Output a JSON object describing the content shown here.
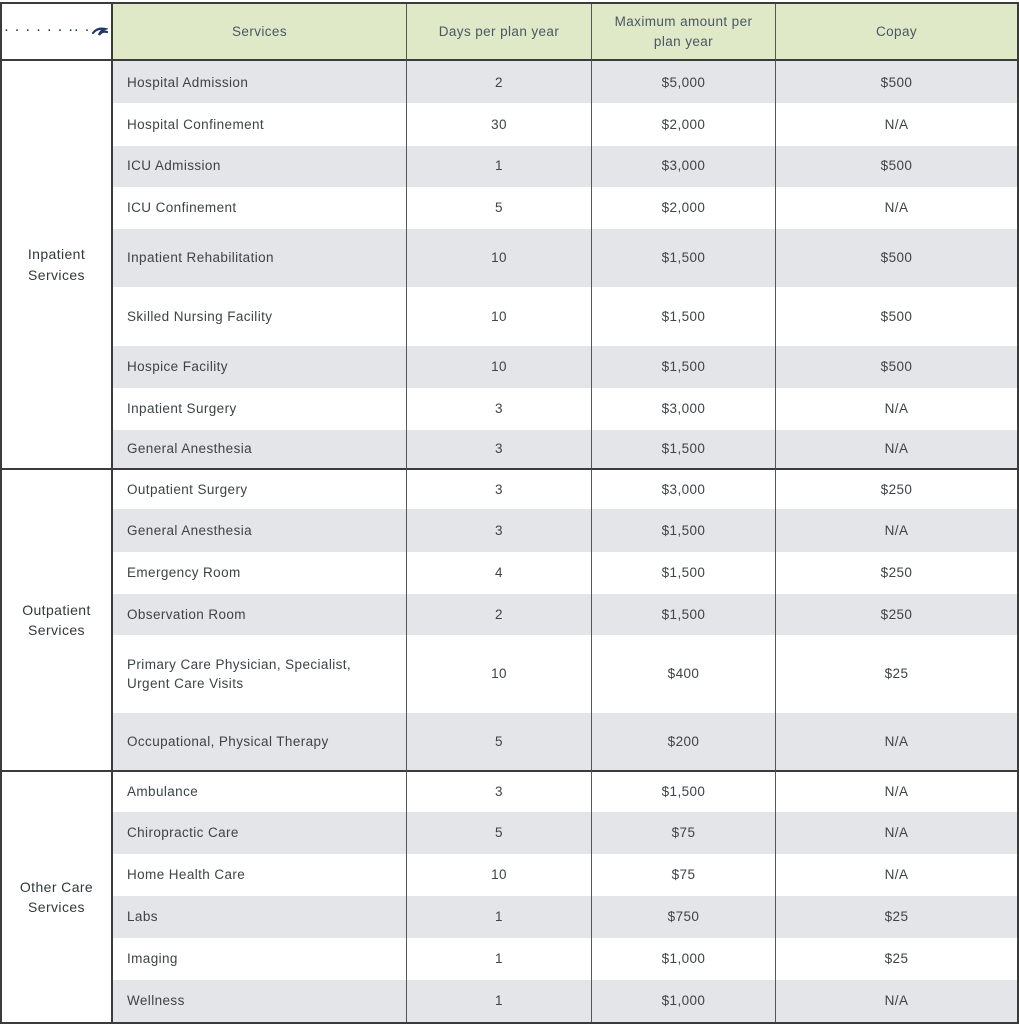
{
  "logo": {
    "icon": "dotted-wordmark",
    "glyph": "· · · · · · ·· ·"
  },
  "table": {
    "headers": [
      "Services",
      "Days per plan year",
      "Maximum amount per plan year",
      "Copay"
    ],
    "sections": [
      {
        "group": "Inpatient Services",
        "rows": [
          {
            "service": "Hospital Admission",
            "days": "2",
            "max": "$5,000",
            "copay": "$500"
          },
          {
            "service": "Hospital Confinement",
            "days": "30",
            "max": "$2,000",
            "copay": "N/A"
          },
          {
            "service": "ICU Admission",
            "days": "1",
            "max": "$3,000",
            "copay": "$500"
          },
          {
            "service": "ICU Confinement",
            "days": "5",
            "max": "$2,000",
            "copay": "N/A"
          },
          {
            "service": "Inpatient Rehabilitation",
            "days": "10",
            "max": "$1,500",
            "copay": "$500"
          },
          {
            "service": "Skilled Nursing Facility",
            "days": "10",
            "max": "$1,500",
            "copay": "$500"
          },
          {
            "service": "Hospice Facility",
            "days": "10",
            "max": "$1,500",
            "copay": "$500"
          },
          {
            "service": "Inpatient Surgery",
            "days": "3",
            "max": "$3,000",
            "copay": "N/A"
          },
          {
            "service": "General Anesthesia",
            "days": "3",
            "max": "$1,500",
            "copay": "N/A"
          }
        ]
      },
      {
        "group": "Outpatient Services",
        "rows": [
          {
            "service": "Outpatient Surgery",
            "days": "3",
            "max": "$3,000",
            "copay": "$250"
          },
          {
            "service": "General Anesthesia",
            "days": "3",
            "max": "$1,500",
            "copay": "N/A"
          },
          {
            "service": "Emergency Room",
            "days": "4",
            "max": "$1,500",
            "copay": "$250"
          },
          {
            "service": "Observation Room",
            "days": "2",
            "max": "$1,500",
            "copay": "$250"
          },
          {
            "service": "Primary Care Physician, Specialist, Urgent Care Visits",
            "days": "10",
            "max": "$400",
            "copay": "$25"
          },
          {
            "service": "Occupational, Physical Therapy",
            "days": "5",
            "max": "$200",
            "copay": "N/A"
          }
        ]
      },
      {
        "group": "Other Care Services",
        "rows": [
          {
            "service": "Ambulance",
            "days": "3",
            "max": "$1,500",
            "copay": "N/A"
          },
          {
            "service": "Chiropractic Care",
            "days": "5",
            "max": "$75",
            "copay": "N/A"
          },
          {
            "service": "Home Health Care",
            "days": "10",
            "max": "$75",
            "copay": "N/A"
          },
          {
            "service": "Labs",
            "days": "1",
            "max": "$750",
            "copay": "$25"
          },
          {
            "service": "Imaging",
            "days": "1",
            "max": "$1,000",
            "copay": "$25"
          },
          {
            "service": "Wellness",
            "days": "1",
            "max": "$1,000",
            "copay": "N/A"
          }
        ]
      }
    ]
  },
  "colors": {
    "header_bg": "#dfe9c8",
    "header_text": "#4b5663",
    "stripe_gray": "#e3e5e8",
    "stripe_white": "#ffffff",
    "border_dark": "#3b3b3b",
    "border_inner": "#565656",
    "body_text": "#3e4347",
    "logo_navy": "#1f3864"
  }
}
